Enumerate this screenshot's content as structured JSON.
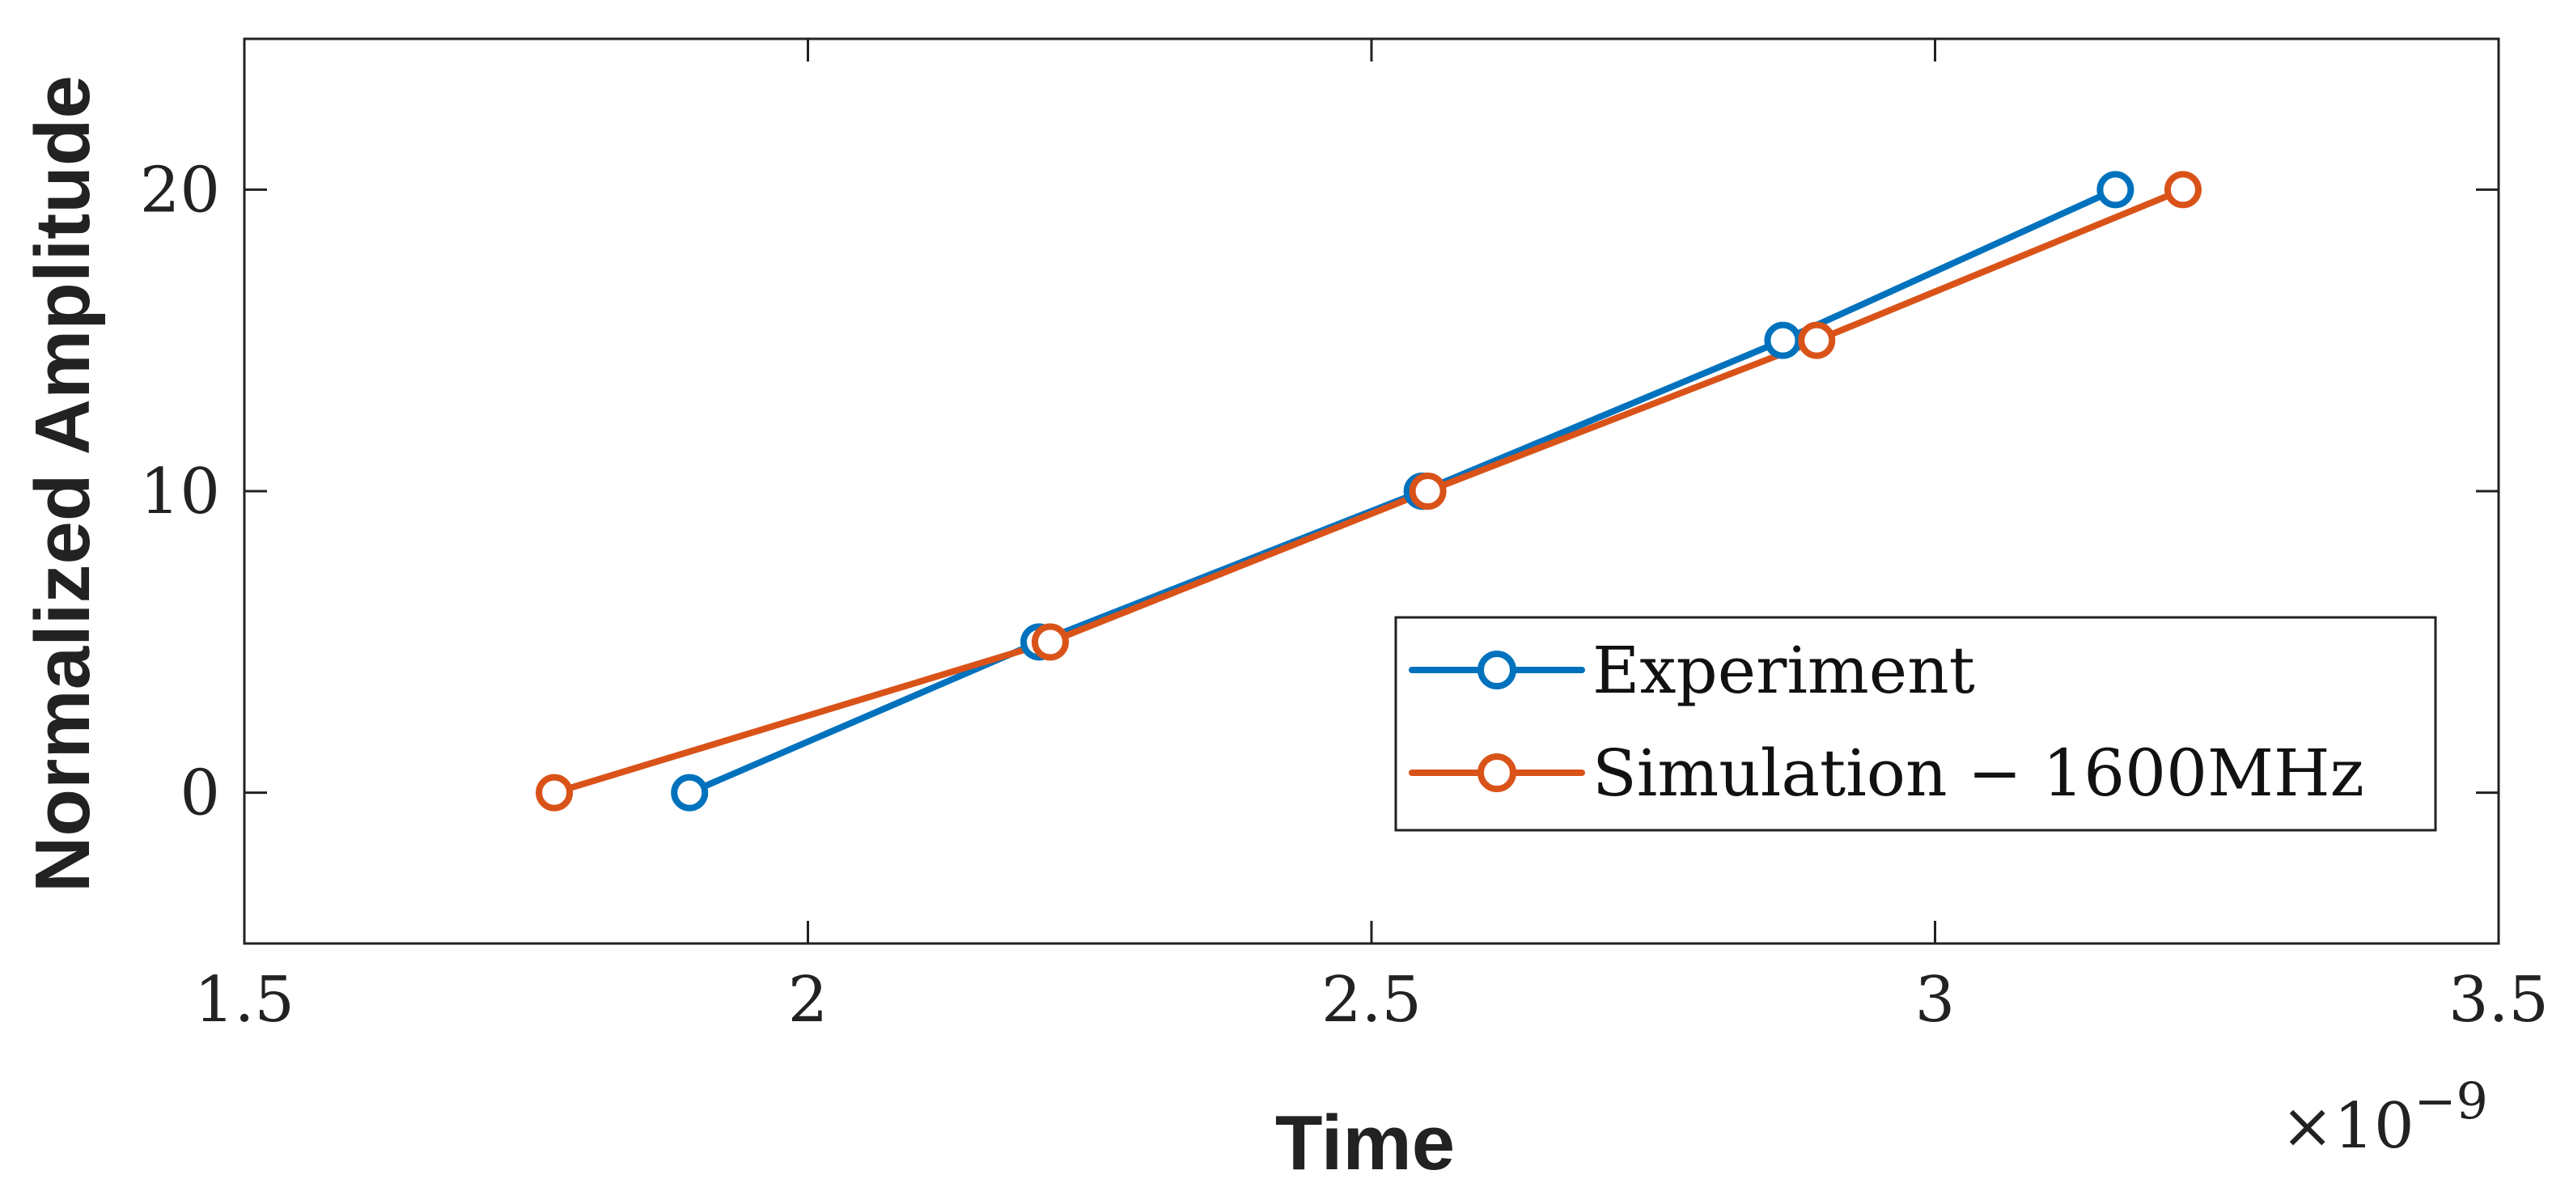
{
  "chart_data": {
    "type": "line",
    "title": "",
    "xlabel": "Time",
    "ylabel": "Normalized Amplitude",
    "xlim": [
      1.5e-09,
      3.5e-09
    ],
    "ylim": [
      -5,
      25
    ],
    "x_ticks": [
      1.5e-09,
      2e-09,
      2.5e-09,
      3e-09,
      3.5e-09
    ],
    "x_tick_labels": [
      "1.5",
      "2",
      "2.5",
      "3",
      "3.5"
    ],
    "y_ticks": [
      0,
      10,
      20
    ],
    "y_tick_labels": [
      "0",
      "10",
      "20"
    ],
    "x_exponent": {
      "base": "×10",
      "power": "−9"
    },
    "grid": false,
    "legend_position": "bottom-right",
    "series": [
      {
        "name": "Experiment",
        "color": "#0072BD",
        "marker": "circle",
        "x": [
          1.895e-09,
          2.205e-09,
          2.545e-09,
          2.865e-09,
          3.16e-09
        ],
        "y": [
          0,
          5,
          10,
          15,
          20
        ]
      },
      {
        "name": "Simulation − 1600MHz",
        "color": "#D95319",
        "marker": "circle",
        "x": [
          1.775e-09,
          2.215e-09,
          2.55e-09,
          2.895e-09,
          3.22e-09
        ],
        "y": [
          0,
          5,
          10,
          15,
          20
        ]
      }
    ]
  }
}
